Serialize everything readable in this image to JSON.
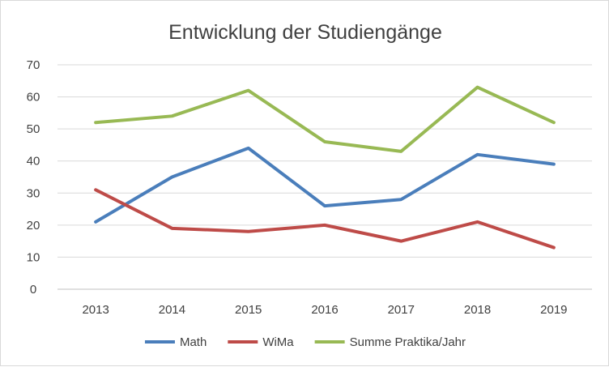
{
  "chart_data": {
    "type": "line",
    "title": "Entwicklung der Studiengänge",
    "xlabel": "",
    "ylabel": "",
    "categories": [
      "2013",
      "2014",
      "2015",
      "2016",
      "2017",
      "2018",
      "2019"
    ],
    "ylim": [
      0,
      70
    ],
    "yticks": [
      0,
      10,
      20,
      30,
      40,
      50,
      60,
      70
    ],
    "grid": true,
    "legend_position": "bottom",
    "series": [
      {
        "name": "Math",
        "color": "#4a7ebb",
        "values": [
          21,
          35,
          44,
          26,
          28,
          42,
          39
        ]
      },
      {
        "name": "WiMa",
        "color": "#be4b48",
        "values": [
          31,
          19,
          18,
          20,
          15,
          21,
          13
        ]
      },
      {
        "name": "Summe Praktika/Jahr",
        "color": "#98b954",
        "values": [
          52,
          54,
          62,
          46,
          43,
          63,
          52
        ]
      }
    ]
  }
}
